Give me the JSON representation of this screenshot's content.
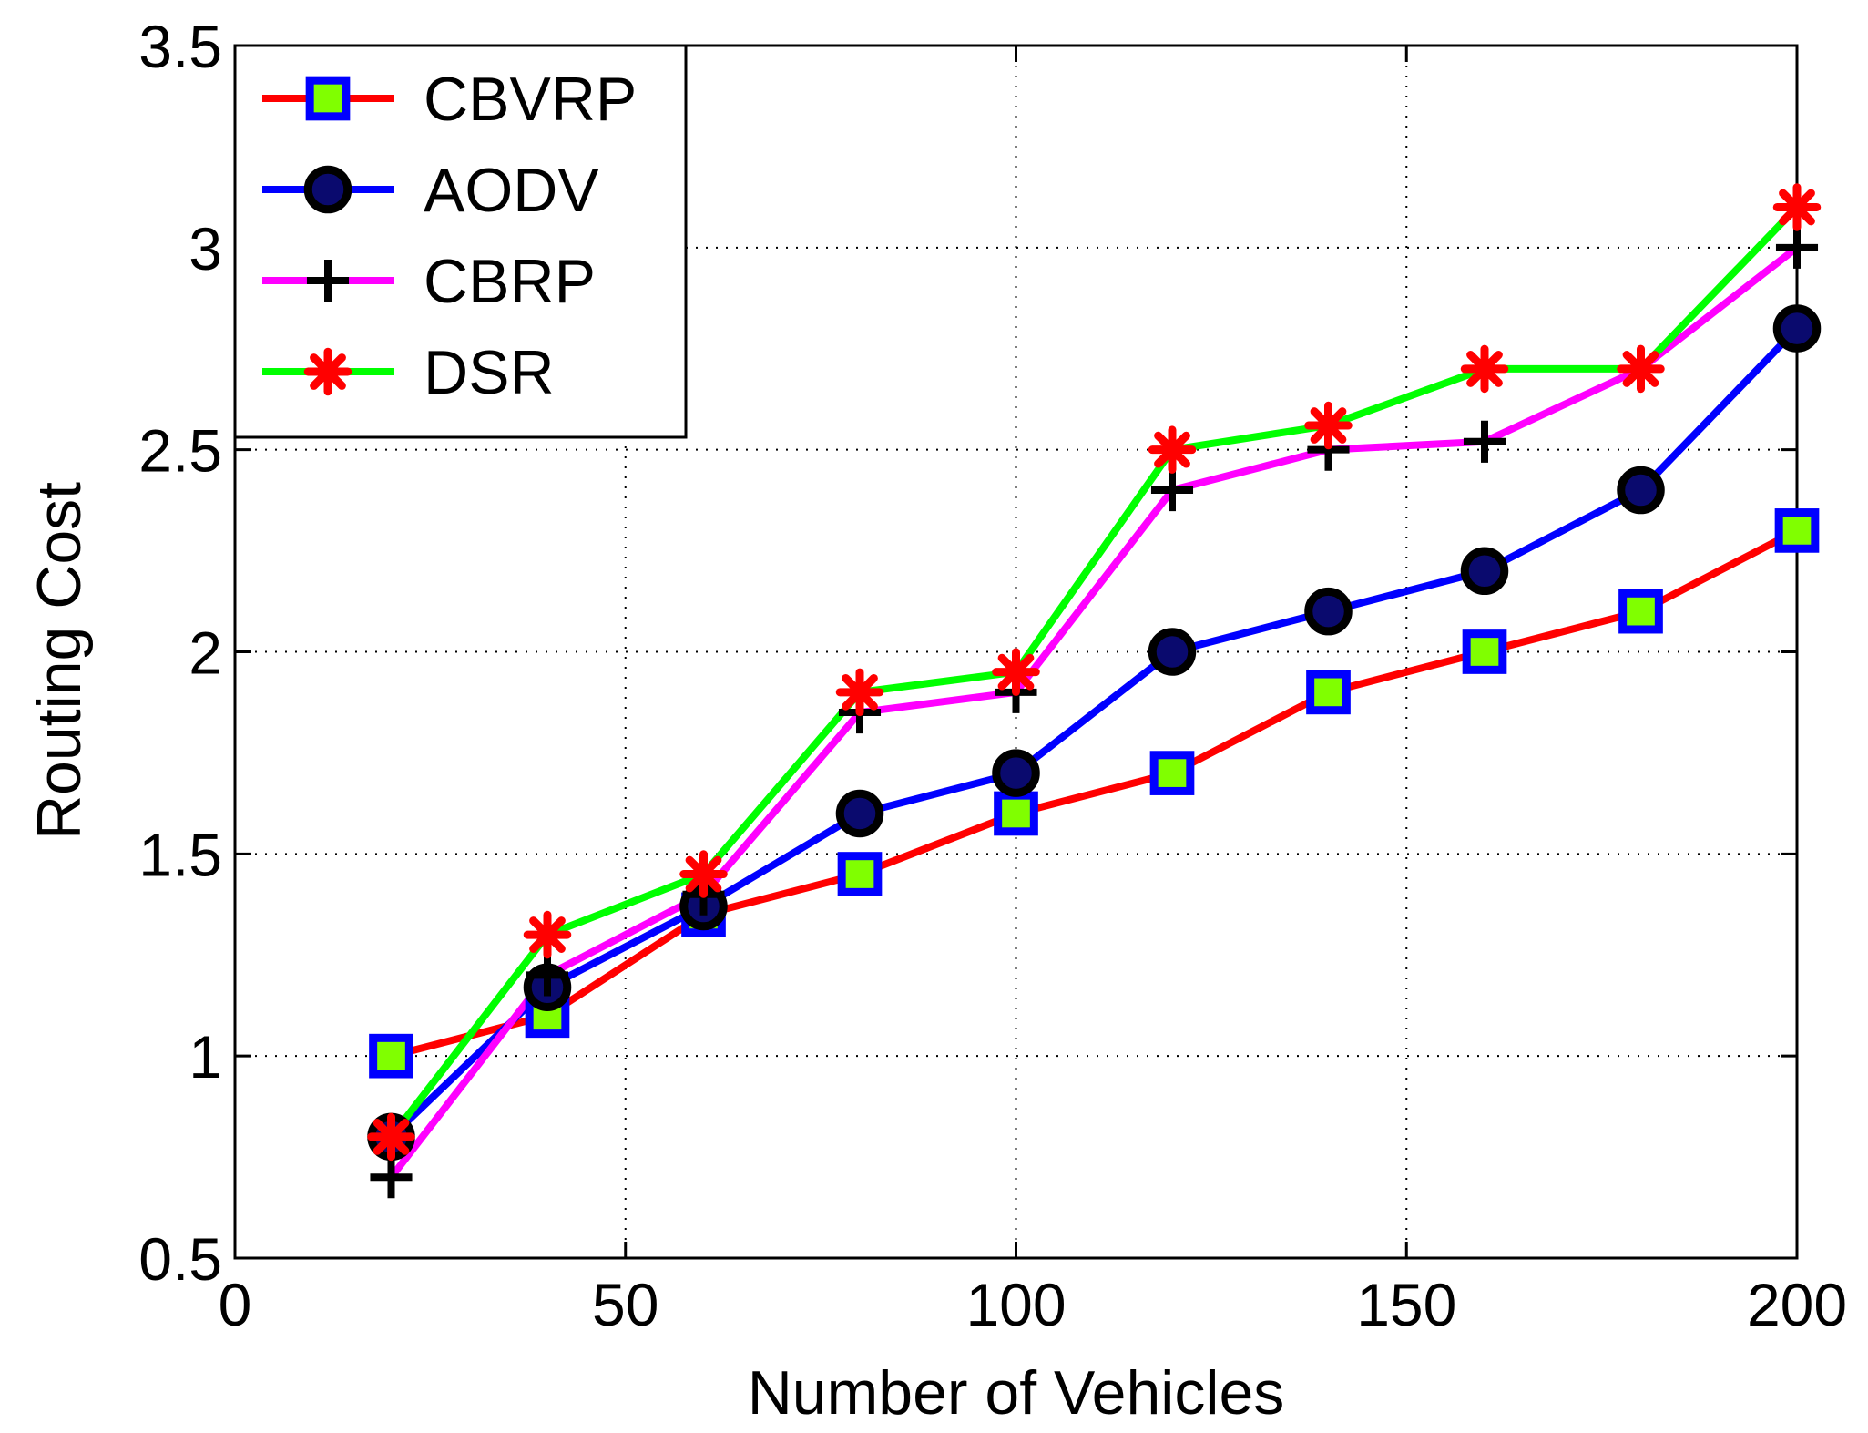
{
  "chart_data": {
    "type": "line",
    "title": "",
    "xlabel": "Number of Vehicles",
    "ylabel": "Routing Cost",
    "xlim": [
      0,
      200
    ],
    "ylim": [
      0.5,
      3.5
    ],
    "xticks": [
      0,
      50,
      100,
      150,
      200
    ],
    "yticks": [
      0.5,
      1,
      1.5,
      2,
      2.5,
      3,
      3.5
    ],
    "xtick_labels": [
      "0",
      "50",
      "100",
      "150",
      "200"
    ],
    "ytick_labels": [
      "0.5",
      "1",
      "1.5",
      "2",
      "2.5",
      "3",
      "3.5"
    ],
    "grid": true,
    "legend_position": "top-left",
    "x": [
      20,
      40,
      60,
      80,
      100,
      120,
      140,
      160,
      180,
      200
    ],
    "series": [
      {
        "name": "CBVRP",
        "line_color": "#ff0000",
        "marker": "square",
        "marker_edge": "#0000ff",
        "marker_fill": "#80ff00",
        "values": [
          1.0,
          1.1,
          1.35,
          1.45,
          1.6,
          1.7,
          1.9,
          2.0,
          2.1,
          2.3
        ]
      },
      {
        "name": "AODV",
        "line_color": "#0000ff",
        "marker": "circle",
        "marker_edge": "#000000",
        "marker_fill": "#0a0a6e",
        "values": [
          0.8,
          1.17,
          1.37,
          1.6,
          1.7,
          2.0,
          2.1,
          2.2,
          2.4,
          2.8
        ]
      },
      {
        "name": "CBRP",
        "line_color": "#ff00ff",
        "marker": "plus",
        "marker_edge": "#000000",
        "marker_fill": "none",
        "values": [
          0.7,
          1.2,
          1.4,
          1.85,
          1.9,
          2.4,
          2.5,
          2.52,
          2.7,
          3.0
        ]
      },
      {
        "name": "DSR",
        "line_color": "#00ff00",
        "marker": "asterisk",
        "marker_edge": "#ff0000",
        "marker_fill": "#ff0000",
        "values": [
          0.8,
          1.3,
          1.45,
          1.9,
          1.95,
          2.5,
          2.56,
          2.7,
          2.7,
          3.1
        ]
      }
    ]
  }
}
